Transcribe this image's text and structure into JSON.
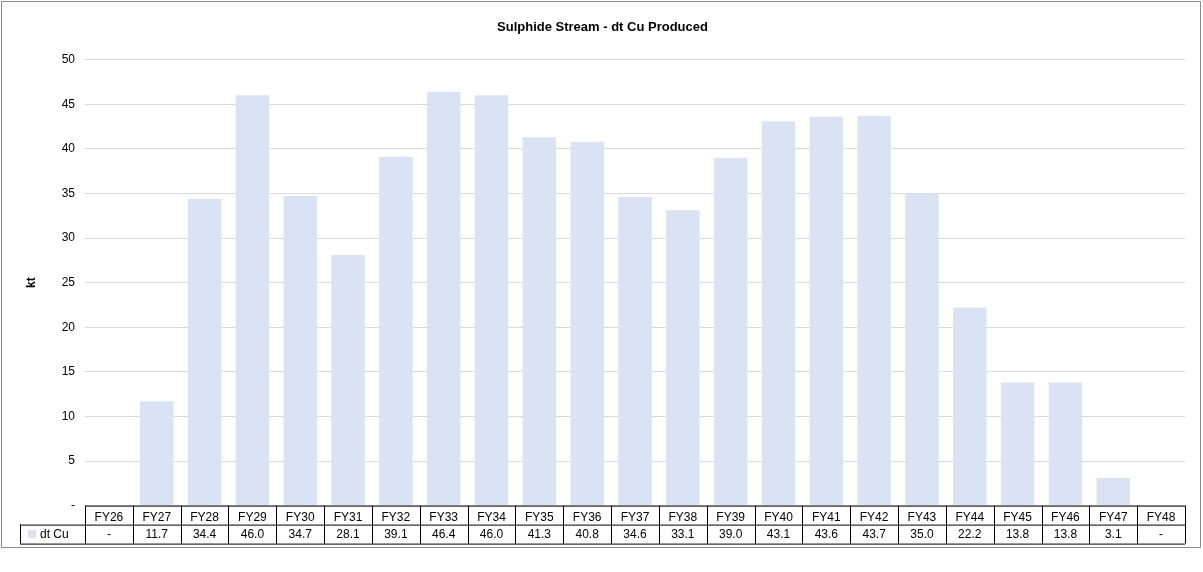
{
  "chart_data": {
    "type": "bar",
    "title": "Sulphide Stream - dt Cu Produced",
    "ylabel": "kt",
    "categories": [
      "FY26",
      "FY27",
      "FY28",
      "FY29",
      "FY30",
      "FY31",
      "FY32",
      "FY33",
      "FY34",
      "FY35",
      "FY36",
      "FY37",
      "FY38",
      "FY39",
      "FY40",
      "FY41",
      "FY42",
      "FY43",
      "FY44",
      "FY45",
      "FY46",
      "FY47",
      "FY48"
    ],
    "series": [
      {
        "name": "dt Cu",
        "color": "#dae3f3",
        "values": [
          0,
          11.7,
          34.4,
          46.0,
          34.7,
          28.1,
          39.1,
          46.4,
          46.0,
          41.3,
          40.8,
          34.6,
          33.1,
          39.0,
          43.1,
          43.6,
          43.7,
          35.0,
          22.2,
          13.8,
          13.8,
          3.1,
          0
        ],
        "value_labels": [
          "-",
          "11.7",
          "34.4",
          "46.0",
          "34.7",
          "28.1",
          "39.1",
          "46.4",
          "46.0",
          "41.3",
          "40.8",
          "34.6",
          "33.1",
          "39.0",
          "43.1",
          "43.6",
          "43.7",
          "35.0",
          "22.2",
          "13.8",
          "13.8",
          "3.1",
          "-"
        ]
      }
    ],
    "ylim": [
      0,
      50
    ],
    "yticks": [
      {
        "value": 0,
        "label": "-"
      },
      5,
      10,
      15,
      20,
      25,
      30,
      35,
      40,
      45,
      50
    ],
    "grid": "y",
    "legend": "bottom"
  }
}
